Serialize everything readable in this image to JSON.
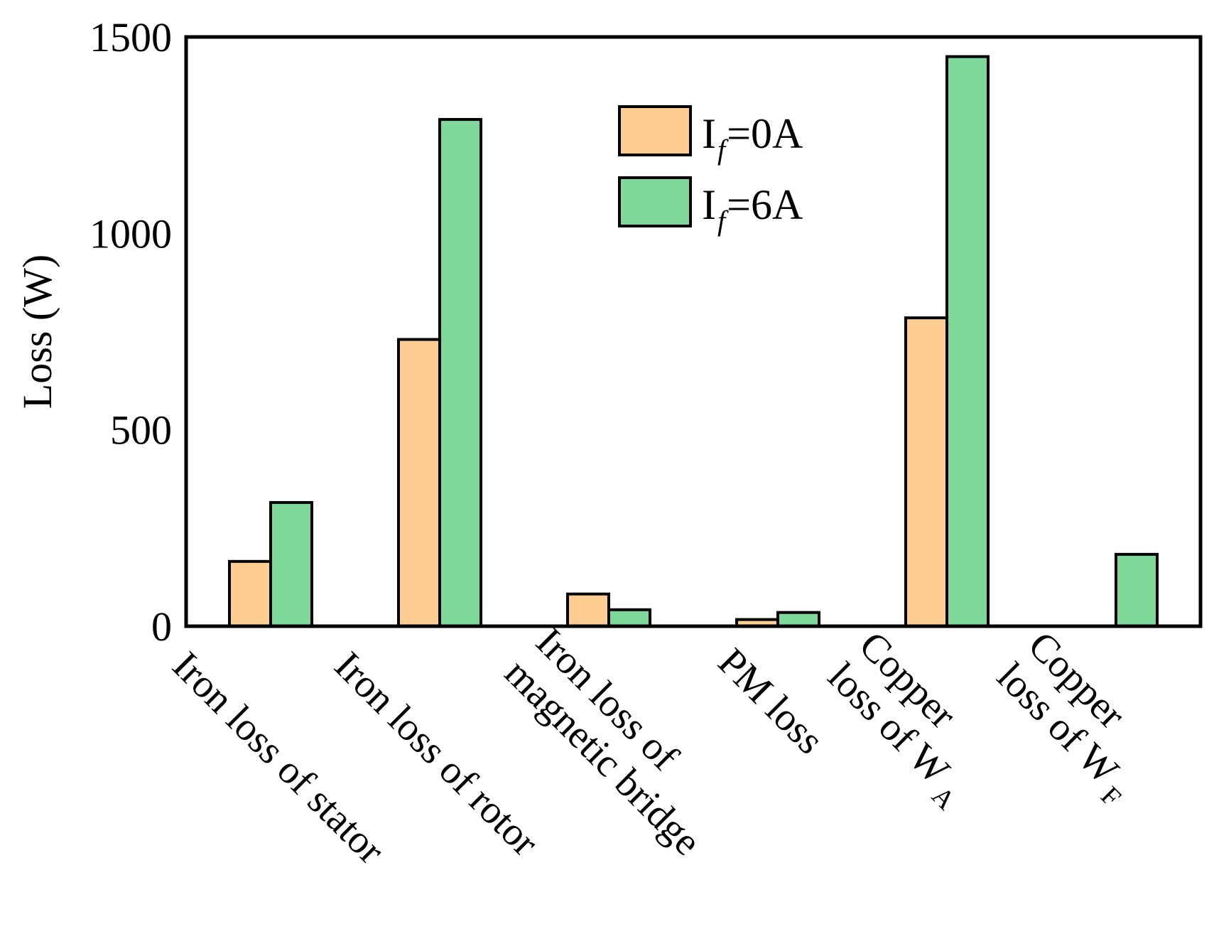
{
  "chart_data": {
    "type": "bar",
    "title": "",
    "ylabel": "Loss (W)",
    "xlabel": "",
    "ylim": [
      0,
      1500
    ],
    "yticks": [
      "0",
      "500",
      "1000",
      "1500"
    ],
    "grid": false,
    "legend_position": "top-center",
    "categories": [
      {
        "lines": [
          "Iron loss of stator"
        ],
        "subscript": null
      },
      {
        "lines": [
          "Iron loss of rotor"
        ],
        "subscript": null
      },
      {
        "lines": [
          "Iron loss of",
          "magnetic bridge"
        ],
        "subscript": null
      },
      {
        "lines": [
          "PM loss"
        ],
        "subscript": null
      },
      {
        "lines": [
          "Copper",
          "loss of W"
        ],
        "subscript": "A"
      },
      {
        "lines": [
          "Copper",
          "loss of W"
        ],
        "subscript": "F"
      }
    ],
    "series": [
      {
        "name": "I",
        "name_subscript": "f",
        "name_suffix": "=0A",
        "color": "#FDCD91",
        "values": [
          165,
          730,
          82,
          17,
          785,
          0
        ]
      },
      {
        "name": "I",
        "name_subscript": "f",
        "name_suffix": "=6A",
        "color": "#80D79A",
        "values": [
          315,
          1290,
          42,
          35,
          1450,
          183
        ]
      }
    ]
  }
}
